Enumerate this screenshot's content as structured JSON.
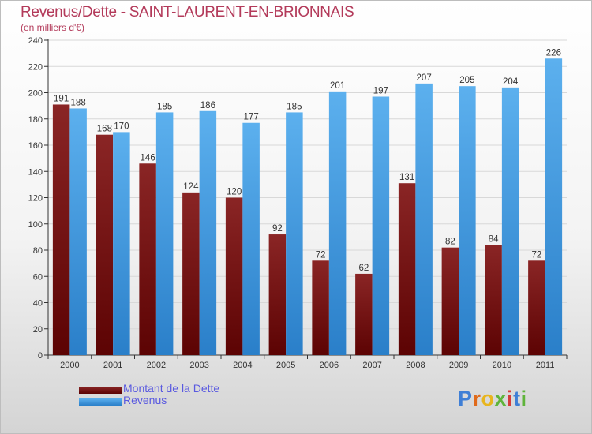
{
  "title": "Revenus/Dette - SAINT-LAURENT-EN-BRIONNAIS",
  "subtitle": "(en milliers d'€)",
  "logo": {
    "letters": [
      "P",
      "r",
      "o",
      "x",
      "i",
      "t",
      "i"
    ],
    "colors": [
      "#3f7fd6",
      "#e06a1b",
      "#e8b51e",
      "#5fb43a",
      "#d63a3a",
      "#3f7fd6",
      "#5fb43a"
    ]
  },
  "chart_data": {
    "type": "bar",
    "categories": [
      "2000",
      "2001",
      "2002",
      "2003",
      "2004",
      "2005",
      "2006",
      "2007",
      "2008",
      "2009",
      "2010",
      "2011"
    ],
    "series": [
      {
        "name": "Montant de la Dette",
        "color": "#7a1414",
        "values": [
          191,
          168,
          146,
          124,
          120,
          92,
          72,
          62,
          131,
          82,
          84,
          72
        ]
      },
      {
        "name": "Revenus",
        "color": "#4aa3e6",
        "values": [
          188,
          170,
          185,
          186,
          177,
          185,
          201,
          197,
          207,
          205,
          204,
          226
        ]
      }
    ],
    "yticks": [
      0,
      20,
      40,
      60,
      80,
      100,
      120,
      140,
      160,
      180,
      200,
      220,
      240
    ],
    "ylim": [
      0,
      240
    ],
    "grid": true,
    "legend_position": "bottom-left"
  }
}
